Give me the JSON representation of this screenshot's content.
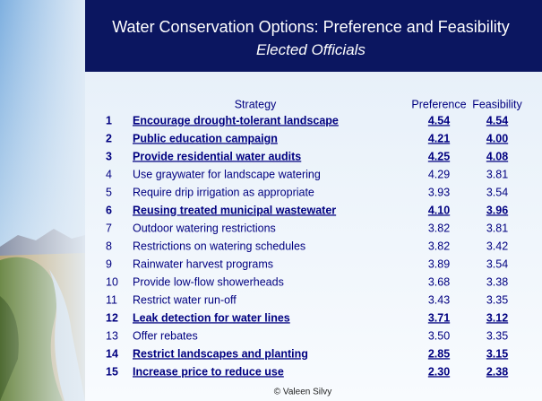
{
  "header": {
    "title": "Water Conservation Options: Preference and Feasibility",
    "subtitle": "Elected Officials"
  },
  "table": {
    "columns": [
      "Strategy",
      "Preference",
      "Feasibility"
    ],
    "rows": [
      {
        "rank": "1",
        "strategy": "Encourage drought-tolerant landscape",
        "preference": "4.54",
        "feasibility": "4.54",
        "highlight": true
      },
      {
        "rank": "2",
        "strategy": "Public education campaign",
        "preference": "4.21",
        "feasibility": "4.00",
        "highlight": true
      },
      {
        "rank": "3",
        "strategy": "Provide residential water audits",
        "preference": "4.25",
        "feasibility": "4.08",
        "highlight": true
      },
      {
        "rank": "4",
        "strategy": "Use graywater for landscape watering",
        "preference": "4.29",
        "feasibility": "3.81",
        "highlight": false
      },
      {
        "rank": "5",
        "strategy": "Require drip irrigation as appropriate",
        "preference": "3.93",
        "feasibility": "3.54",
        "highlight": false
      },
      {
        "rank": "6",
        "strategy": "Reusing treated municipal wastewater",
        "preference": "4.10",
        "feasibility": "3.96",
        "highlight": true
      },
      {
        "rank": "7",
        "strategy": "Outdoor watering restrictions",
        "preference": "3.82",
        "feasibility": "3.81",
        "highlight": false
      },
      {
        "rank": "8",
        "strategy": "Restrictions on watering schedules",
        "preference": "3.82",
        "feasibility": "3.42",
        "highlight": false
      },
      {
        "rank": "9",
        "strategy": "Rainwater harvest programs",
        "preference": "3.89",
        "feasibility": "3.54",
        "highlight": false
      },
      {
        "rank": "10",
        "strategy": "Provide low-flow showerheads",
        "preference": "3.68",
        "feasibility": "3.38",
        "highlight": false
      },
      {
        "rank": "11",
        "strategy": "Restrict water run-off",
        "preference": "3.43",
        "feasibility": "3.35",
        "highlight": false
      },
      {
        "rank": "12",
        "strategy": "Leak detection for water lines",
        "preference": "3.71",
        "feasibility": "3.12",
        "highlight": true
      },
      {
        "rank": "13",
        "strategy": "Offer rebates",
        "preference": "3.50",
        "feasibility": "3.35",
        "highlight": false
      },
      {
        "rank": "14",
        "strategy": "Restrict landscapes and planting",
        "preference": "2.85",
        "feasibility": "3.15",
        "highlight": true
      },
      {
        "rank": "15",
        "strategy": "Increase price to reduce use",
        "preference": "2.30",
        "feasibility": "2.38",
        "highlight": true
      }
    ]
  },
  "footer": "© Valeen Silvy"
}
